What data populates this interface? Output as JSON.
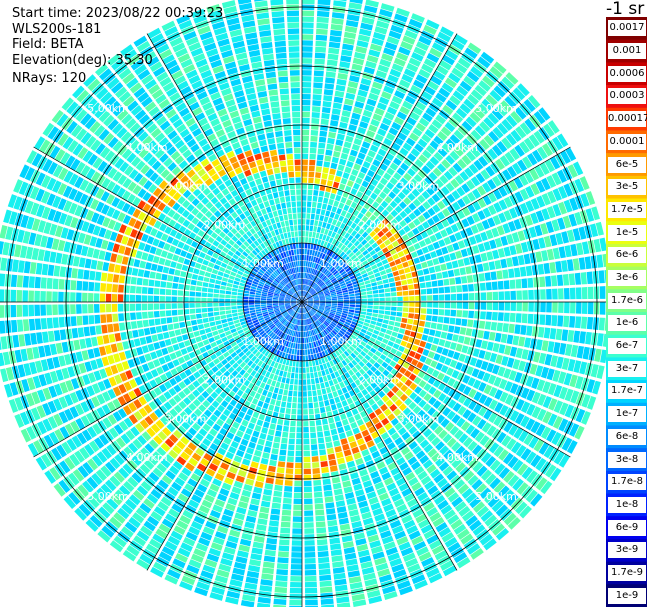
{
  "info": {
    "start_time": "Start time: 2023/08/22 00:39:23",
    "instrument": "WLS200s-181",
    "field": "Field: BETA",
    "elevation": "Elevation(deg): 35.30",
    "nrays": "NRays: 120"
  },
  "colorbar": {
    "unit": "-1 sr",
    "labels": [
      "0.0017",
      "0.001",
      "0.0006",
      "0.0003",
      "0.00017",
      "0.0001",
      "6e-5",
      "3e-5",
      "1.7e-5",
      "1e-5",
      "6e-6",
      "3e-6",
      "1.7e-6",
      "1e-6",
      "6e-7",
      "3e-7",
      "1.7e-7",
      "1e-7",
      "6e-8",
      "3e-8",
      "1.7e-8",
      "1e-8",
      "6e-9",
      "3e-9",
      "1.7e-9",
      "1e-9"
    ],
    "colors": [
      "#7f0000",
      "#a00000",
      "#c80000",
      "#ee1010",
      "#ff3a00",
      "#ff6a00",
      "#ff9a00",
      "#ffc200",
      "#ffe800",
      "#eaff10",
      "#caff3a",
      "#a6ff62",
      "#80ff88",
      "#5cffaa",
      "#3cffd0",
      "#18f0f0",
      "#00d4ff",
      "#00b0ff",
      "#008cff",
      "#0068ff",
      "#0044ff",
      "#0022ff",
      "#0000f0",
      "#0000c8",
      "#00009e",
      "#000074"
    ]
  },
  "range_rings": {
    "labels": [
      "1.00km",
      "2.00km",
      "3.00km",
      "4.00km",
      "5.00km"
    ],
    "values_km": [
      1,
      2,
      3,
      4,
      5
    ]
  }
}
